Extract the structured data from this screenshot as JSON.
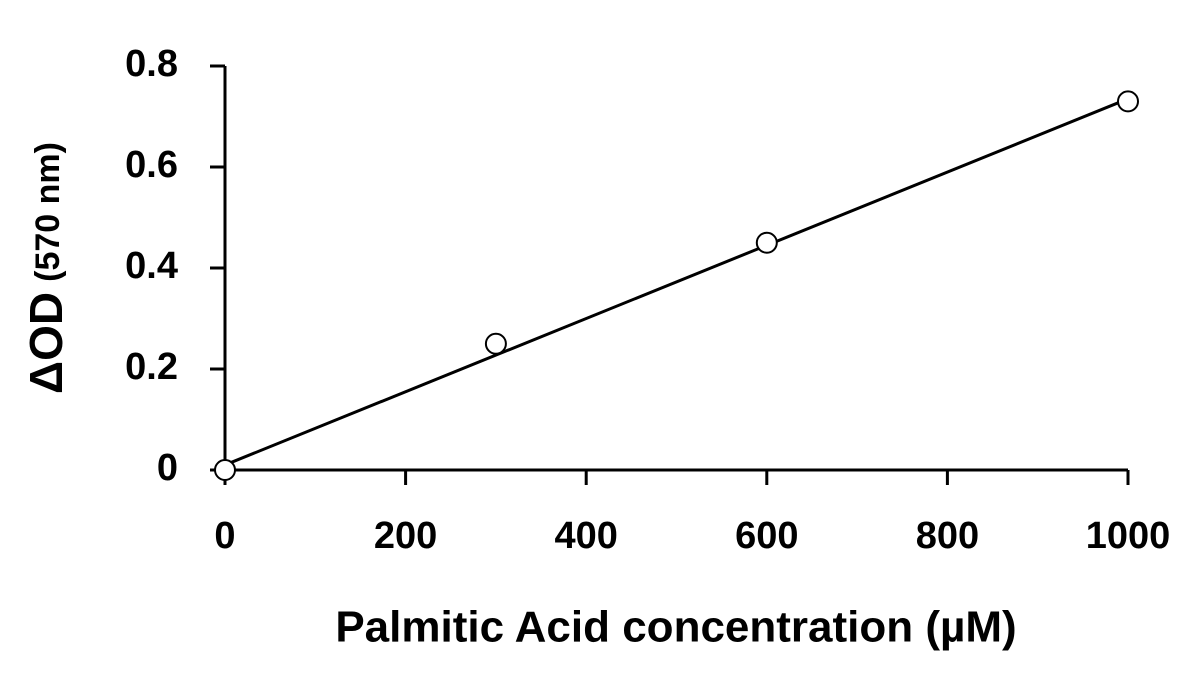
{
  "chart_data": {
    "type": "scatter",
    "x_label": "Palmitic Acid concentration (µM)",
    "y_label": "ΔOD",
    "y_label_unit": "(570 nm)",
    "series": [
      {
        "x": [
          0,
          300,
          600,
          1000
        ],
        "values": [
          0,
          0.25,
          0.45,
          0.73
        ],
        "color": "#000000"
      }
    ],
    "fit_line": {
      "x": [
        0,
        1000
      ],
      "values": [
        0.01,
        0.735
      ],
      "color": "#000000"
    },
    "xlim": [
      0,
      1000
    ],
    "xticks": [
      0,
      200,
      400,
      600,
      800,
      1000
    ],
    "ylim": [
      0,
      0.8
    ],
    "yticks": [
      0,
      0.2,
      0.4,
      0.6,
      0.8
    ],
    "grid": false
  }
}
